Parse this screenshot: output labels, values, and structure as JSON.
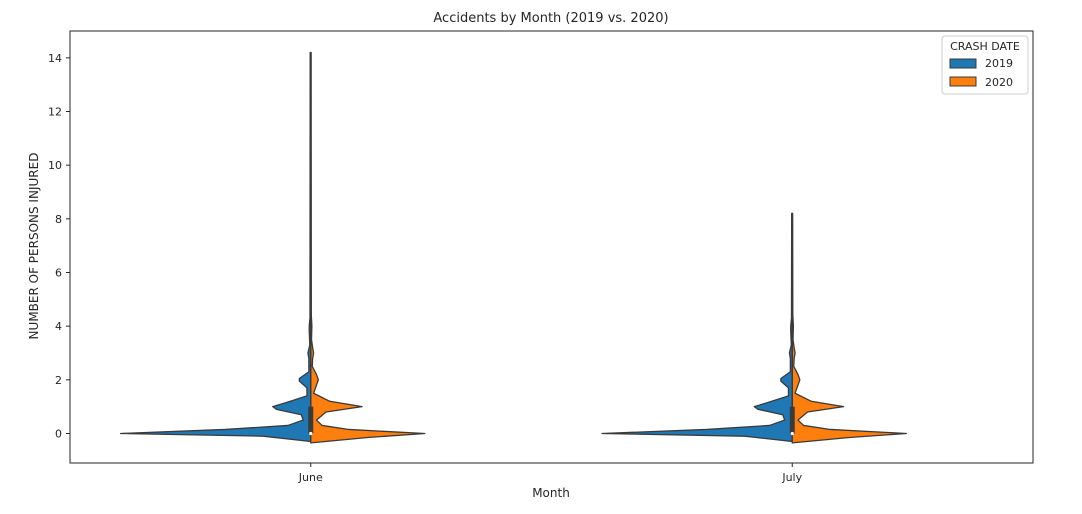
{
  "chart_data": {
    "type": "violin",
    "title": "Accidents by Month (2019 vs. 2020)",
    "xlabel": "Month",
    "ylabel": "NUMBER OF PERSONS INJURED",
    "categories": [
      "June",
      "July"
    ],
    "ylim": [
      -1.1,
      15.0
    ],
    "yticks": [
      0,
      2,
      4,
      6,
      8,
      10,
      12,
      14
    ],
    "grid": false,
    "legend": {
      "title": "CRASH DATE",
      "placement": "top-right",
      "entries": [
        "2019",
        "2020"
      ]
    },
    "split": true,
    "series": [
      {
        "name": "2019",
        "side": "left",
        "color": "#1f77b4",
        "violins": {
          "June": {
            "max": 14.2,
            "density": [
              [
                -0.3,
                0.0
              ],
              [
                -0.1,
                0.25
              ],
              [
                0.0,
                1.0
              ],
              [
                0.15,
                0.45
              ],
              [
                0.3,
                0.12
              ],
              [
                0.5,
                0.04
              ],
              [
                0.7,
                0.05
              ],
              [
                0.9,
                0.18
              ],
              [
                1.0,
                0.2
              ],
              [
                1.15,
                0.13
              ],
              [
                1.4,
                0.02
              ],
              [
                1.7,
                0.02
              ],
              [
                1.95,
                0.06
              ],
              [
                2.05,
                0.06
              ],
              [
                2.3,
                0.01
              ],
              [
                2.8,
                0.01
              ],
              [
                3.0,
                0.015
              ],
              [
                3.3,
                0.005
              ],
              [
                3.8,
                0.008
              ],
              [
                4.0,
                0.008
              ],
              [
                4.3,
                0.004
              ],
              [
                14.2,
                0.003
              ]
            ]
          },
          "July": {
            "max": 8.2,
            "density": [
              [
                -0.3,
                0.0
              ],
              [
                -0.1,
                0.25
              ],
              [
                0.0,
                1.0
              ],
              [
                0.15,
                0.45
              ],
              [
                0.3,
                0.12
              ],
              [
                0.5,
                0.04
              ],
              [
                0.7,
                0.05
              ],
              [
                0.9,
                0.18
              ],
              [
                1.0,
                0.2
              ],
              [
                1.15,
                0.13
              ],
              [
                1.4,
                0.02
              ],
              [
                1.7,
                0.02
              ],
              [
                1.95,
                0.06
              ],
              [
                2.05,
                0.06
              ],
              [
                2.3,
                0.01
              ],
              [
                2.8,
                0.01
              ],
              [
                3.0,
                0.015
              ],
              [
                3.3,
                0.005
              ],
              [
                3.8,
                0.008
              ],
              [
                4.0,
                0.008
              ],
              [
                4.3,
                0.004
              ],
              [
                8.2,
                0.003
              ]
            ]
          }
        }
      },
      {
        "name": "2020",
        "side": "right",
        "color": "#ff7f0e",
        "violins": {
          "June": {
            "max": 14.2,
            "density": [
              [
                -0.35,
                0.0
              ],
              [
                -0.15,
                0.3
              ],
              [
                0.0,
                0.6
              ],
              [
                0.15,
                0.2
              ],
              [
                0.3,
                0.06
              ],
              [
                0.5,
                0.03
              ],
              [
                0.8,
                0.08
              ],
              [
                1.0,
                0.27
              ],
              [
                1.2,
                0.1
              ],
              [
                1.5,
                0.015
              ],
              [
                1.8,
                0.03
              ],
              [
                2.0,
                0.04
              ],
              [
                2.2,
                0.03
              ],
              [
                2.5,
                0.008
              ],
              [
                2.8,
                0.01
              ],
              [
                3.0,
                0.015
              ],
              [
                3.2,
                0.01
              ],
              [
                3.5,
                0.004
              ],
              [
                4.0,
                0.006
              ],
              [
                4.4,
                0.003
              ],
              [
                14.2,
                0.002
              ]
            ]
          },
          "July": {
            "max": 8.2,
            "density": [
              [
                -0.35,
                0.0
              ],
              [
                -0.15,
                0.3
              ],
              [
                0.0,
                0.6
              ],
              [
                0.15,
                0.2
              ],
              [
                0.3,
                0.06
              ],
              [
                0.5,
                0.03
              ],
              [
                0.8,
                0.08
              ],
              [
                1.0,
                0.27
              ],
              [
                1.2,
                0.1
              ],
              [
                1.5,
                0.015
              ],
              [
                1.8,
                0.03
              ],
              [
                2.0,
                0.04
              ],
              [
                2.2,
                0.03
              ],
              [
                2.5,
                0.008
              ],
              [
                2.8,
                0.01
              ],
              [
                3.0,
                0.015
              ],
              [
                3.2,
                0.01
              ],
              [
                3.5,
                0.004
              ],
              [
                4.0,
                0.006
              ],
              [
                4.4,
                0.003
              ],
              [
                8.2,
                0.002
              ]
            ]
          }
        }
      }
    ]
  }
}
